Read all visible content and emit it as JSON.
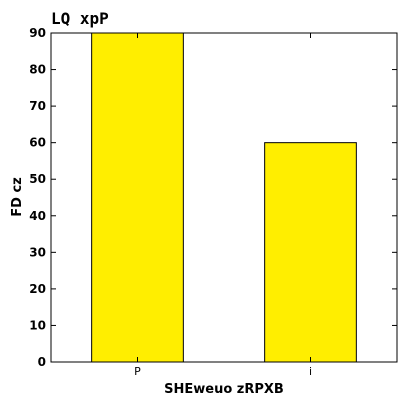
{
  "chart_data": {
    "type": "bar",
    "title": "LQ xpP",
    "xlabel": "SHEweuo zRPXB",
    "ylabel": "FD cz",
    "categories": [
      "P",
      "i"
    ],
    "values": [
      90,
      60
    ],
    "ylim": [
      0,
      90
    ],
    "yticks": [
      0,
      10,
      20,
      30,
      40,
      50,
      60,
      70,
      80,
      90
    ],
    "bar_color": "#ffee00",
    "bar_edge_color": "#000000",
    "grid": false,
    "legend": "none"
  }
}
